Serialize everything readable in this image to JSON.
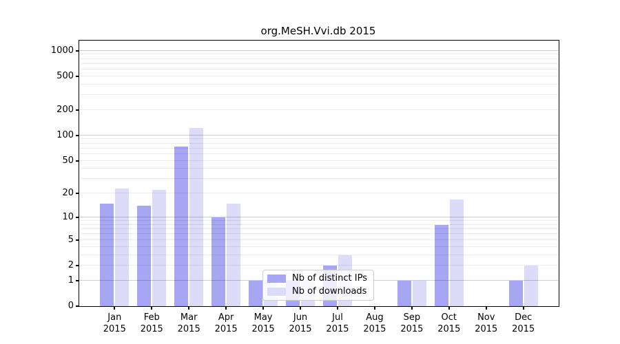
{
  "chart_data": {
    "type": "bar",
    "title": "org.MeSH.Vvi.db 2015",
    "year_label": "2015",
    "categories": [
      "Jan",
      "Feb",
      "Mar",
      "Apr",
      "May",
      "Jun",
      "Jul",
      "Aug",
      "Sep",
      "Oct",
      "Nov",
      "Dec"
    ],
    "series": [
      {
        "name": "Nb of distinct IPs",
        "color": "#a6a6f2",
        "values": [
          15,
          14,
          74,
          10,
          1,
          1,
          2,
          0,
          1,
          8,
          0,
          1
        ]
      },
      {
        "name": "Nb of downloads",
        "color": "#dcdcf9",
        "values": [
          23,
          22,
          122,
          15,
          1,
          1,
          3,
          0,
          1,
          17,
          0,
          2
        ]
      }
    ],
    "xlabel": "",
    "ylabel": "",
    "yticks": [
      0,
      1,
      2,
      5,
      10,
      20,
      50,
      100,
      200,
      500,
      1000
    ],
    "ylim": [
      0,
      1310
    ],
    "yscale": "log1p",
    "grid": "horizontal, log minor lines, major lines at powers of ten",
    "legend_position": "lower center",
    "colors": {
      "major_gridline": "#cbcbcb",
      "minor_gridline": "#ebebeb",
      "axis": "#000000",
      "legend_border": "#cccccc",
      "background": "#ffffff"
    }
  }
}
